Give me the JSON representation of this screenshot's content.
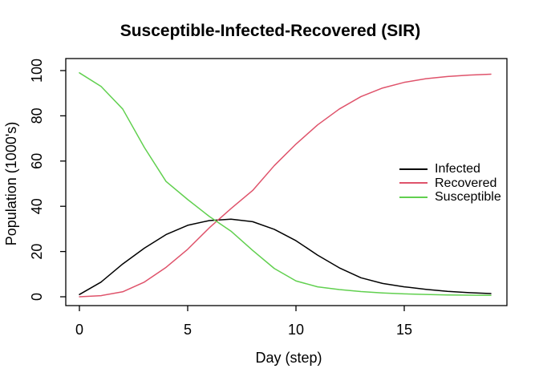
{
  "title": "Susceptible-Infected-Recovered (SIR)",
  "chart_data": {
    "type": "line",
    "title": "Susceptible-Infected-Recovered (SIR)",
    "xlabel": "Day (step)",
    "ylabel": "Population (1000's)",
    "xlim": [
      0,
      19
    ],
    "ylim": [
      0,
      100
    ],
    "xticks": [
      0,
      5,
      10,
      15
    ],
    "yticks": [
      0,
      20,
      40,
      60,
      80,
      100
    ],
    "grid": false,
    "background": "#FFFFFF",
    "legend_position": "right-middle",
    "legend_border": false,
    "x": [
      0,
      1,
      2,
      3,
      4,
      5,
      6,
      7,
      8,
      9,
      10,
      11,
      12,
      13,
      14,
      15,
      16,
      17,
      18,
      19
    ],
    "series": [
      {
        "name": "Infected",
        "color": "#000000",
        "values": [
          1,
          6.5,
          14.5,
          21.5,
          27.5,
          31.6,
          33.7,
          34.3,
          33.2,
          29.8,
          24.8,
          18.4,
          12.8,
          8.4,
          5.9,
          4.4,
          3.3,
          2.4,
          1.8,
          1.4
        ]
      },
      {
        "name": "Recovered",
        "color": "#DF536B",
        "values": [
          0,
          0.5,
          2.2,
          6.5,
          13,
          21,
          30.5,
          39,
          47,
          58,
          67.5,
          76,
          83,
          88.5,
          92.3,
          94.8,
          96.4,
          97.4,
          98,
          98.4
        ]
      },
      {
        "name": "Susceptible",
        "color": "#61D04F",
        "values": [
          99,
          93,
          83,
          66,
          51,
          43,
          35.5,
          29,
          20.5,
          12.5,
          7,
          4.4,
          3.2,
          2.3,
          1.7,
          1.3,
          1.0,
          0.8,
          0.7,
          0.6
        ]
      }
    ]
  }
}
